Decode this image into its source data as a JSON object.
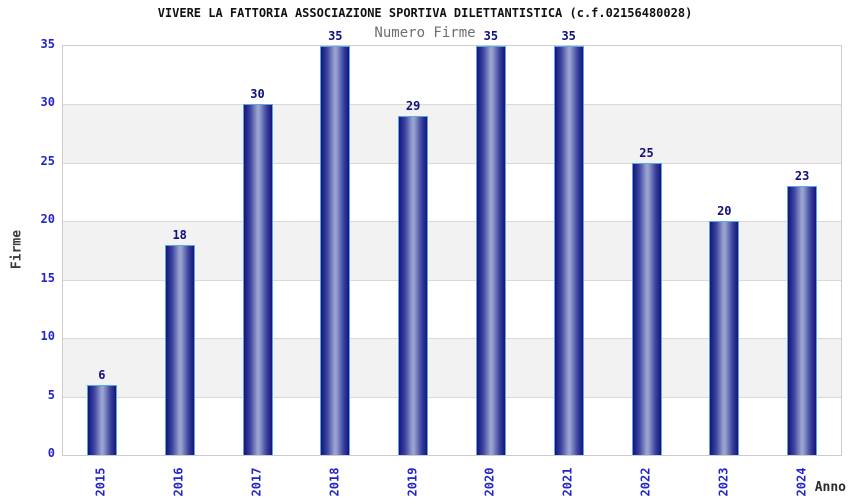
{
  "chart_data": {
    "type": "bar",
    "title": "VIVERE LA FATTORIA ASSOCIAZIONE SPORTIVA DILETTANTISTICA (c.f.02156480028)",
    "subtitle": "Numero Firme",
    "categories": [
      "2015",
      "2016",
      "2017",
      "2018",
      "2019",
      "2020",
      "2021",
      "2022",
      "2023",
      "2024"
    ],
    "values": [
      6,
      18,
      30,
      35,
      29,
      35,
      35,
      25,
      20,
      23
    ],
    "xlabel": "Anno",
    "ylabel": "Firme",
    "ylim": [
      0,
      35
    ],
    "yticks": [
      0,
      5,
      10,
      15,
      20,
      25,
      30,
      35
    ],
    "grid": "horizontal alternating bands every 5 units",
    "legend_position": "none",
    "colors": {
      "bar_edge_dark": "#14147a",
      "bar_mid_light": "#9aa2d0",
      "bar_border": "#58a8e8",
      "value_label": "#10107e",
      "tick_label": "#2424cc",
      "band_alternate": "#f2f2f2",
      "band_base": "#ffffff",
      "plot_border": "#cccccc",
      "subtitle_gray": "#6e6e6e",
      "title_black": "#111111"
    }
  }
}
